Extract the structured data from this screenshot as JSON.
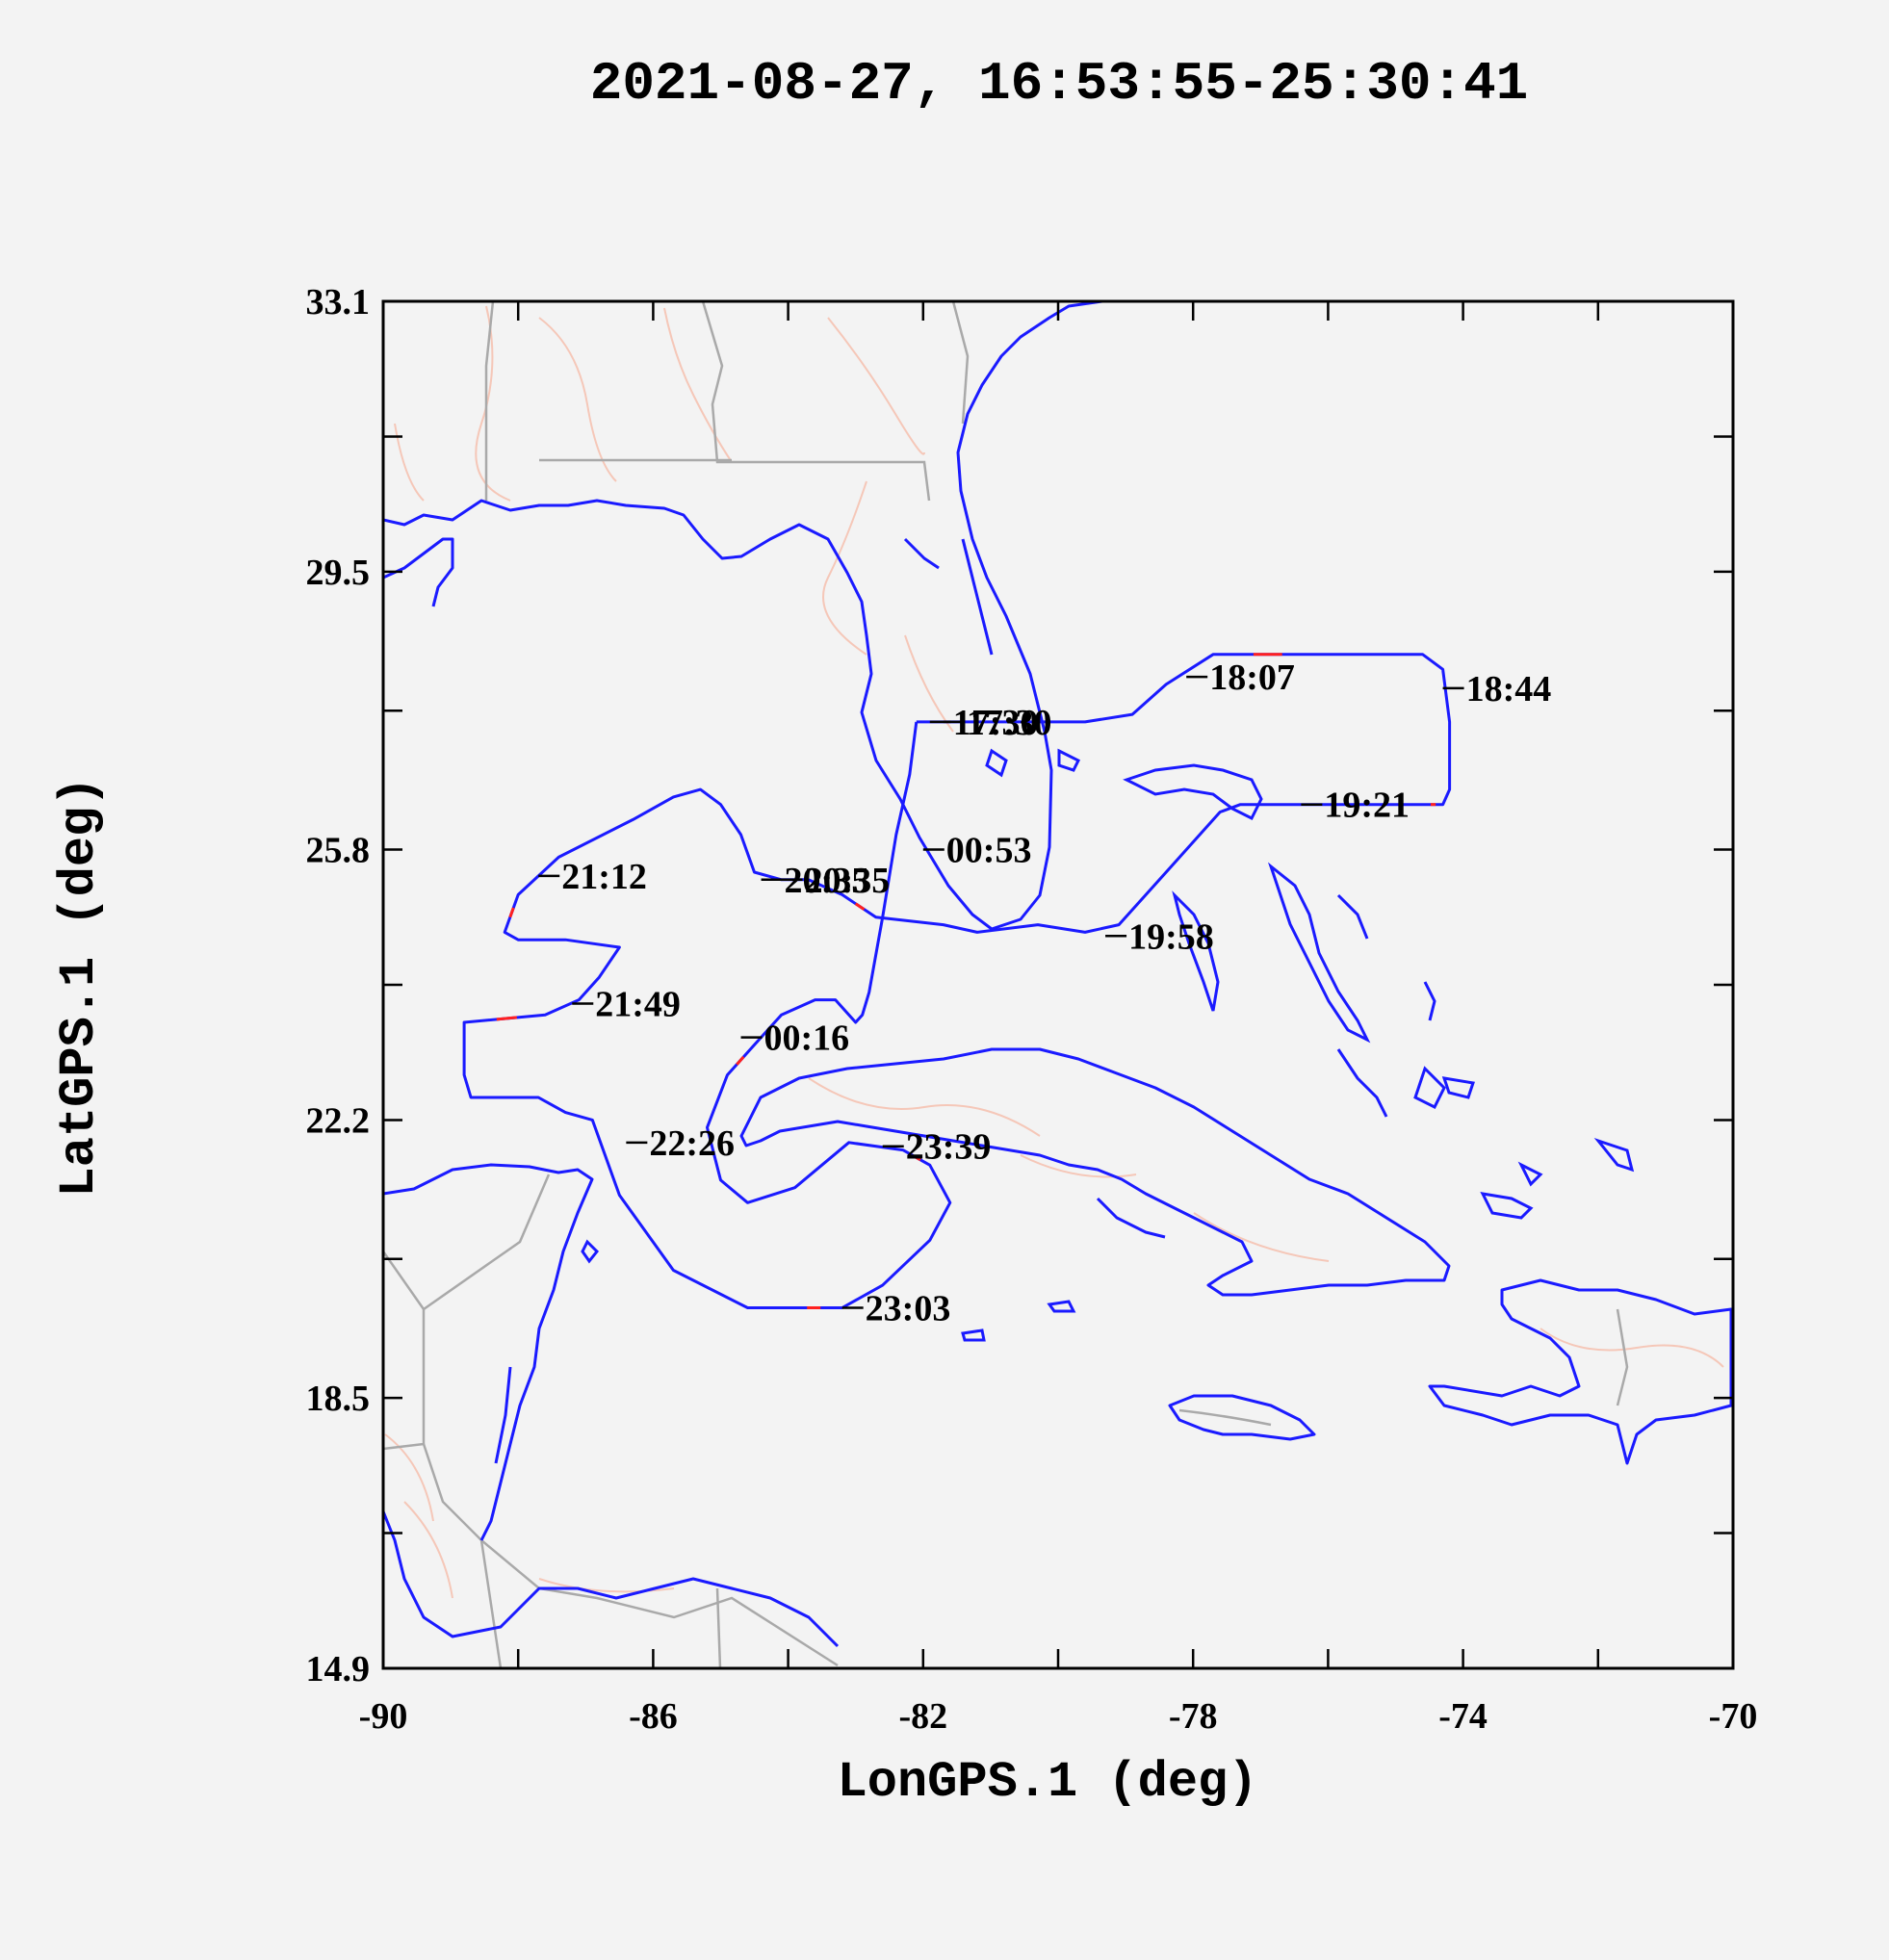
{
  "chart_data": {
    "type": "line",
    "title": "2021-08-27, 16:53:55-25:30:41",
    "xlabel": "LonGPS.1 (deg)",
    "ylabel": "LatGPS.1 (deg)",
    "xlim": [
      -90,
      -70
    ],
    "ylim": [
      14.9,
      33.1
    ],
    "x_ticks": [
      -90,
      -86,
      -82,
      -78,
      -74,
      -70
    ],
    "x_tick_labels": [
      "-90",
      "-86",
      "-82",
      "-78",
      "-74",
      "-70"
    ],
    "y_ticks": [
      14.9,
      18.5,
      22.2,
      25.8,
      29.5,
      33.1
    ],
    "y_tick_labels": [
      "14.9",
      "18.5",
      "22.2",
      "25.8",
      "29.5",
      "33.1"
    ],
    "grid": false,
    "series": [
      {
        "line_color": "#1a1aff",
        "x": [
          -82.1,
          -81.6,
          -80.5,
          -79.6,
          -78.9,
          -78.4,
          -77.7,
          -76.0,
          -74.6,
          -74.3,
          -74.2,
          -74.2,
          -74.3,
          -74.6,
          -77.3,
          -77.6,
          -78.4,
          -79.1,
          -79.6,
          -80.3,
          -81.2,
          -81.7,
          -82.7,
          -83.2,
          -83.7,
          -84.1,
          -84.5,
          -84.7,
          -85.0,
          -85.3,
          -85.7,
          -86.3,
          -87.4,
          -88.0,
          -88.2,
          -88.0,
          -87.3,
          -86.5,
          -86.8,
          -87.1,
          -87.6,
          -88.8,
          -88.8,
          -88.7,
          -87.7,
          -87.3,
          -86.9,
          -86.5,
          -85.7,
          -84.6,
          -84.0,
          -83.2,
          -82.6,
          -81.9,
          -81.6,
          -81.9,
          -82.3,
          -83.1,
          -83.9,
          -84.6,
          -85.0,
          -85.2,
          -84.9,
          -84.5,
          -84.1,
          -83.6,
          -83.3,
          -83.0,
          -82.9,
          -82.8,
          -82.6,
          -82.4,
          -82.2,
          -82.1
        ],
        "y": [
          27.5,
          27.5,
          27.5,
          27.5,
          27.6,
          28.0,
          28.4,
          28.4,
          28.4,
          28.2,
          27.5,
          26.6,
          26.4,
          26.4,
          26.4,
          26.3,
          25.5,
          24.8,
          24.7,
          24.8,
          24.7,
          24.8,
          24.9,
          25.2,
          25.4,
          25.4,
          25.5,
          26.0,
          26.4,
          26.6,
          26.5,
          26.2,
          25.7,
          25.2,
          24.7,
          24.6,
          24.6,
          24.5,
          24.1,
          23.8,
          23.6,
          23.5,
          22.8,
          22.5,
          22.5,
          22.3,
          22.2,
          21.2,
          20.2,
          19.7,
          19.7,
          19.7,
          20.0,
          20.6,
          21.1,
          21.6,
          21.8,
          21.9,
          21.3,
          21.1,
          21.4,
          22.1,
          22.8,
          23.2,
          23.6,
          23.8,
          23.8,
          23.5,
          23.6,
          23.9,
          24.9,
          26.0,
          26.8,
          27.5
        ]
      }
    ],
    "annotations": [
      {
        "text": "18:07",
        "x": -78.1,
        "y": 28.1
      },
      {
        "text": "18:44",
        "x": -74.3,
        "y": 27.95
      },
      {
        "text": "19:21",
        "x": -76.4,
        "y": 26.4
      },
      {
        "text": "19:58",
        "x": -79.3,
        "y": 24.65
      },
      {
        "text": "21:12",
        "x": -87.7,
        "y": 25.45
      },
      {
        "text": "21:49",
        "x": -87.2,
        "y": 23.75
      },
      {
        "text": "00:16",
        "x": -84.7,
        "y": 23.3
      },
      {
        "text": "22:26",
        "x": -86.4,
        "y": 21.9
      },
      {
        "text": "23:39",
        "x": -82.6,
        "y": 21.85
      },
      {
        "text": "23:03",
        "x": -83.2,
        "y": 19.7
      },
      {
        "text": "00:53",
        "x": -82.0,
        "y": 25.8
      },
      {
        "text": "20:35",
        "x": -84.4,
        "y": 25.4
      },
      {
        "text": "20:35",
        "x": -84.1,
        "y": 25.4
      },
      {
        "text": "17:30",
        "x": -81.9,
        "y": 27.5
      },
      {
        "text": "17:30",
        "x": -81.7,
        "y": 27.5
      }
    ]
  }
}
